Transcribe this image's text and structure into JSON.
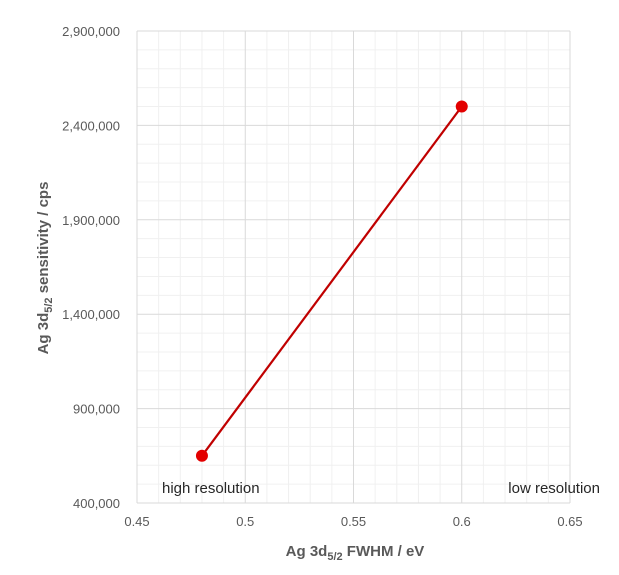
{
  "chart_data": {
    "type": "line",
    "series": [
      {
        "x": [
          0.48,
          0.6
        ],
        "y": [
          650000,
          2500000
        ]
      }
    ],
    "xlabel": {
      "main": "Ag 3d",
      "sub": "5/2",
      "rest": " FWHM / eV"
    },
    "ylabel": {
      "main": "Ag 3d",
      "sub": "5/2",
      "rest": " sensitivity / cps"
    },
    "xlim": [
      0.45,
      0.65
    ],
    "ylim": [
      400000,
      2900000
    ],
    "x_ticks": [
      "0.45",
      "0.5",
      "0.55",
      "0.6",
      "0.65"
    ],
    "y_ticks": [
      "400,000",
      "900,000",
      "1,400,000",
      "1,900,000",
      "2,400,000",
      "2,900,000"
    ],
    "x_tick_values": [
      0.45,
      0.5,
      0.55,
      0.6,
      0.65
    ],
    "y_tick_values": [
      400000,
      900000,
      1400000,
      1900000,
      2400000,
      2900000
    ],
    "annotations": {
      "left": "high resolution",
      "right": "low resolution"
    },
    "grid": true,
    "colors": {
      "line": "#c00000",
      "marker": "#e30000",
      "grid_major": "#d9d9d9",
      "grid_minor": "#f0f0f0"
    }
  }
}
